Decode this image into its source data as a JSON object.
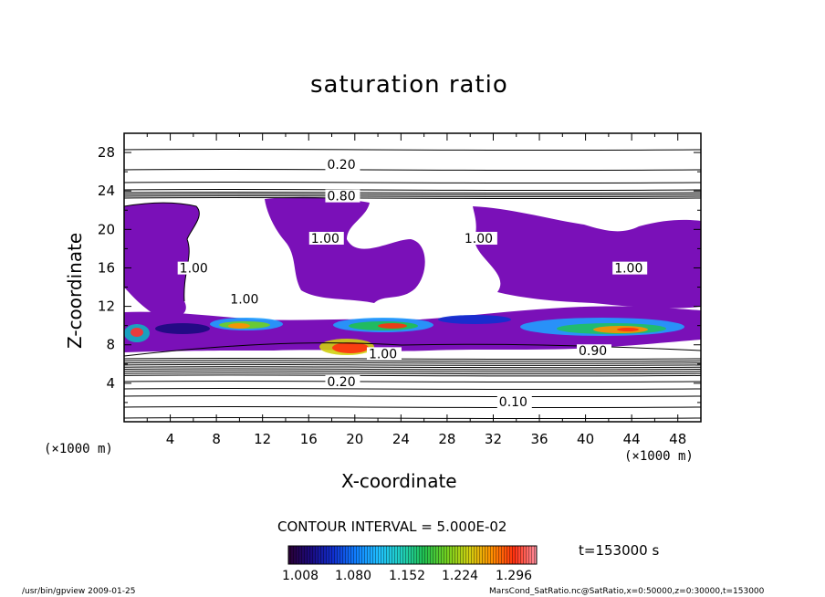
{
  "chart_data": {
    "type": "heatmap",
    "title": "saturation ratio",
    "xlabel": "X-coordinate",
    "ylabel": "Z-coordinate",
    "x_unit": "(×1000 m)",
    "y_unit": "(×1000 m)",
    "xlim": [
      0,
      50
    ],
    "ylim": [
      0,
      30
    ],
    "x_ticks": [
      4,
      8,
      12,
      16,
      20,
      24,
      28,
      32,
      36,
      40,
      44,
      48
    ],
    "y_ticks": [
      4,
      8,
      12,
      16,
      20,
      24,
      28
    ],
    "contour_interval_label": "CONTOUR INTERVAL = 5.000E-02",
    "time_label": "t=153000 s",
    "colorbar": {
      "ticks": [
        "1.008",
        "1.080",
        "1.152",
        "1.224",
        "1.296"
      ],
      "colors": [
        "#2a0033",
        "#1a0a80",
        "#1030d0",
        "#1080ff",
        "#20c0ff",
        "#20d0c0",
        "#20c050",
        "#70d020",
        "#d0d010",
        "#ff9000",
        "#ff3010",
        "#ff90a0"
      ]
    },
    "contour_labels": [
      {
        "text": "0.20",
        "x": 17.6,
        "y": 26.5
      },
      {
        "text": "0.80",
        "x": 17.6,
        "y": 23.2
      },
      {
        "text": "1.00",
        "x": 16.2,
        "y": 18.8
      },
      {
        "text": "1.00",
        "x": 29.5,
        "y": 18.8
      },
      {
        "text": "1.00",
        "x": 4.8,
        "y": 15.7
      },
      {
        "text": "1.00",
        "x": 42.5,
        "y": 15.7
      },
      {
        "text": "1.00",
        "x": 9.2,
        "y": 12.5
      },
      {
        "text": "1.00",
        "x": 21.2,
        "y": 6.8
      },
      {
        "text": "0.90",
        "x": 39.4,
        "y": 7.1
      },
      {
        "text": "0.20",
        "x": 17.6,
        "y": 3.9
      },
      {
        "text": "0.10",
        "x": 32.5,
        "y": 1.8
      }
    ],
    "footer_left": "/usr/bin/gpview   2009-01-25",
    "footer_right": "MarsCond_SatRatio.nc@SatRatio,x=0:50000,z=0:30000,t=153000"
  }
}
